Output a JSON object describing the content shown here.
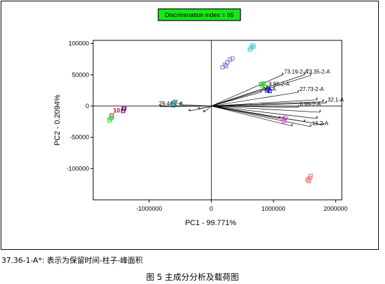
{
  "chart_data": {
    "type": "scatter",
    "title": "Discrimination index = 95",
    "title_box_color": "#19e619",
    "xlabel": "PC1 - 99.771%",
    "ylabel": "PC2 - 0.2094%",
    "xlim": [
      -1900000,
      2100000
    ],
    "ylim": [
      -150000,
      105000
    ],
    "xticks": [
      -1000000,
      0,
      1000000,
      2000000
    ],
    "xtick_labels": [
      "-1000000",
      "0",
      "1000000",
      "2000000"
    ],
    "yticks": [
      100000,
      50000,
      0,
      -50000,
      -100000
    ],
    "ytick_labels": [
      "100000",
      "50000",
      "0",
      "-50000",
      "-100000"
    ],
    "grid": false,
    "groups": [
      {
        "label": "10",
        "color": "#cc0033",
        "points": [
          [
            -1600000,
            -15000
          ]
        ]
      },
      {
        "label": "",
        "color": "#22cc22",
        "points": [
          [
            -1640000,
            -23000
          ],
          [
            -1620000,
            -20000
          ],
          [
            -1600000,
            -18000
          ]
        ]
      },
      {
        "label": "",
        "color": "#660066",
        "points": [
          [
            -1420000,
            -8000
          ],
          [
            -1410000,
            -5000
          ],
          [
            -1400000,
            -3000
          ]
        ]
      },
      {
        "label": "",
        "color": "#2e8b8b",
        "points": [
          [
            -620000,
            3000
          ],
          [
            -600000,
            5000
          ],
          [
            -580000,
            7000
          ],
          [
            -610000,
            1000
          ]
        ]
      },
      {
        "label": "",
        "color": "#7777cc",
        "points": [
          [
            180000,
            62000
          ],
          [
            220000,
            66000
          ],
          [
            260000,
            70000
          ],
          [
            300000,
            74000
          ],
          [
            340000,
            76000
          ],
          [
            240000,
            64000
          ]
        ]
      },
      {
        "label": "",
        "color": "#33cccc",
        "points": [
          [
            620000,
            90000
          ],
          [
            640000,
            93000
          ],
          [
            660000,
            97000
          ],
          [
            680000,
            95000
          ]
        ]
      },
      {
        "label": "",
        "color": "#22cc22",
        "points": [
          [
            820000,
            33000
          ],
          [
            840000,
            36000
          ],
          [
            860000,
            31000
          ],
          [
            800000,
            35000
          ]
        ]
      },
      {
        "label": "",
        "color": "#0000cc",
        "points": [
          [
            900000,
            25000
          ],
          [
            920000,
            27000
          ],
          [
            940000,
            24000
          ]
        ]
      },
      {
        "label": "",
        "color": "#cc33cc",
        "points": [
          [
            1150000,
            -21000
          ],
          [
            1170000,
            -24000
          ],
          [
            1190000,
            -19000
          ]
        ]
      },
      {
        "label": "",
        "color": "#ee6666",
        "points": [
          [
            1550000,
            -118000
          ],
          [
            1580000,
            -115000
          ],
          [
            1600000,
            -112000
          ],
          [
            1570000,
            -120000
          ]
        ]
      }
    ],
    "loadings": [
      {
        "label": "73.19-2-A",
        "x": 1150000,
        "y": 50000
      },
      {
        "label": "73.35-2-A",
        "x": 1500000,
        "y": 50000
      },
      {
        "label": "",
        "x": 1600000,
        "y": 49000
      },
      {
        "label": "9.86-2-A",
        "x": 900000,
        "y": 30000
      },
      {
        "label": "4-2-A",
        "x": 800000,
        "y": 22000
      },
      {
        "label": "27.73-2-A",
        "x": 1400000,
        "y": 22000
      },
      {
        "label": "",
        "x": 1700000,
        "y": 10000
      },
      {
        "label": "",
        "x": 1800000,
        "y": 7000
      },
      {
        "label": "32.1-A",
        "x": 1850000,
        "y": 5000
      },
      {
        "label": "6.99-2-A",
        "x": 1400000,
        "y": -2000
      },
      {
        "label": "",
        "x": 1750000,
        "y": -10000
      },
      {
        "label": "",
        "x": 1700000,
        "y": -20000
      },
      {
        "label": "16.2-A",
        "x": 1600000,
        "y": -33000
      },
      {
        "label": "",
        "x": 1800000,
        "y": -30000
      },
      {
        "label": "",
        "x": 1500000,
        "y": -25000
      },
      {
        "label": "",
        "x": 1300000,
        "y": -32000
      },
      {
        "label": "",
        "x": 1100000,
        "y": -20000
      },
      {
        "label": "29.44-2-A",
        "x": -820000,
        "y": -1000
      },
      {
        "label": "",
        "x": -350000,
        "y": -8000
      },
      {
        "label": "",
        "x": -200000,
        "y": -5000
      },
      {
        "label": "",
        "x": -120000,
        "y": -10000
      },
      {
        "label": "",
        "x": -500000,
        "y": 2000
      }
    ]
  },
  "footnote": "37.36-1-A*: 表示为保留时间-柱子-峰面积",
  "caption": "图 5  主成分分析及载荷图"
}
